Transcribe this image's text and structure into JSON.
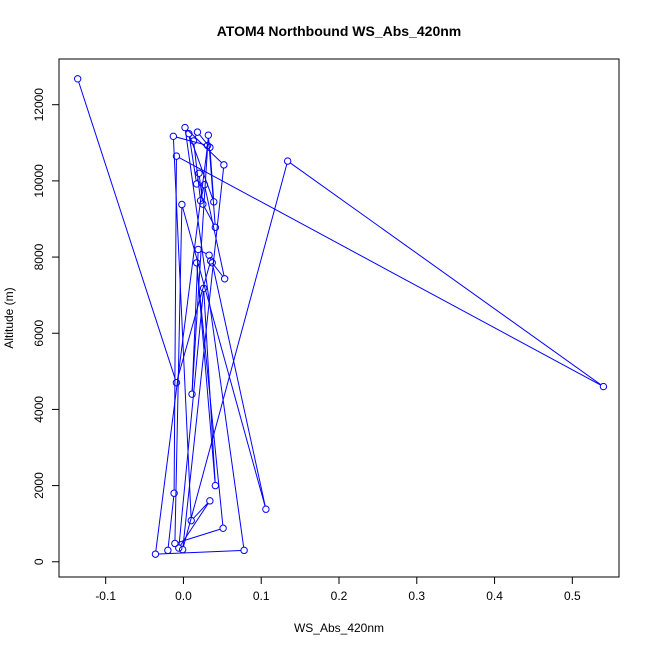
{
  "chart_data": {
    "type": "line",
    "title": "ATOM4 Northbound WS_Abs_420nm",
    "xlabel": "WS_Abs_420nm",
    "ylabel": "Altitude (m)",
    "xlim": [
      -0.16,
      0.56
    ],
    "ylim": [
      -400,
      13200
    ],
    "xticks": [
      -0.1,
      0.0,
      0.1,
      0.2,
      0.3,
      0.4,
      0.5
    ],
    "xtick_labels": [
      "-0.1",
      "0.0",
      "0.1",
      "0.2",
      "0.3",
      "0.4",
      "0.5"
    ],
    "yticks": [
      0,
      2000,
      4000,
      6000,
      8000,
      10000,
      12000
    ],
    "ytick_labels": [
      "0",
      "2000",
      "4000",
      "6000",
      "8000",
      "10000",
      "12000"
    ],
    "grid": false,
    "series_color": "#0000ff",
    "points": [
      {
        "x": -0.136,
        "y": 12680
      },
      {
        "x": -0.009,
        "y": 4700
      },
      {
        "x": 0.035,
        "y": 7900
      },
      {
        "x": 0.053,
        "y": 7430
      },
      {
        "x": 0.027,
        "y": 9900
      },
      {
        "x": 0.022,
        "y": 9480
      },
      {
        "x": 0.013,
        "y": 11050
      },
      {
        "x": 0.018,
        "y": 11280
      },
      {
        "x": 0.034,
        "y": 10880
      },
      {
        "x": 0.039,
        "y": 9450
      },
      {
        "x": 0.007,
        "y": 11240
      },
      {
        "x": 0.017,
        "y": 9920
      },
      {
        "x": 0.02,
        "y": 10200
      },
      {
        "x": 0.025,
        "y": 9390
      },
      {
        "x": 0.041,
        "y": 8780
      },
      {
        "x": 0.032,
        "y": 11200
      },
      {
        "x": 0.011,
        "y": 4400
      },
      {
        "x": 0.019,
        "y": 8200
      },
      {
        "x": 0.033,
        "y": 8050
      },
      {
        "x": 0.037,
        "y": 7850
      },
      {
        "x": 0.106,
        "y": 1380
      },
      {
        "x": -0.002,
        "y": 9380
      },
      {
        "x": -0.011,
        "y": 480
      },
      {
        "x": 0.051,
        "y": 880
      },
      {
        "x": 0.017,
        "y": 7850
      },
      {
        "x": 0.041,
        "y": 2000
      },
      {
        "x": 0.026,
        "y": 7180
      },
      {
        "x": -0.006,
        "y": 360
      },
      {
        "x": 0.034,
        "y": 1600
      },
      {
        "x": 0.01,
        "y": 1080
      },
      {
        "x": -0.013,
        "y": 11170
      },
      {
        "x": 0.031,
        "y": 10930
      },
      {
        "x": -0.036,
        "y": 200
      },
      {
        "x": 0.078,
        "y": 300
      },
      {
        "x": 0.002,
        "y": 11400
      },
      {
        "x": 0.052,
        "y": 10420
      },
      {
        "x": -0.001,
        "y": 320
      },
      {
        "x": 0.134,
        "y": 10520
      },
      {
        "x": 0.54,
        "y": 4600
      },
      {
        "x": -0.009,
        "y": 10650
      },
      {
        "x": -0.012,
        "y": 1800
      },
      {
        "x": -0.02,
        "y": 300
      }
    ]
  }
}
